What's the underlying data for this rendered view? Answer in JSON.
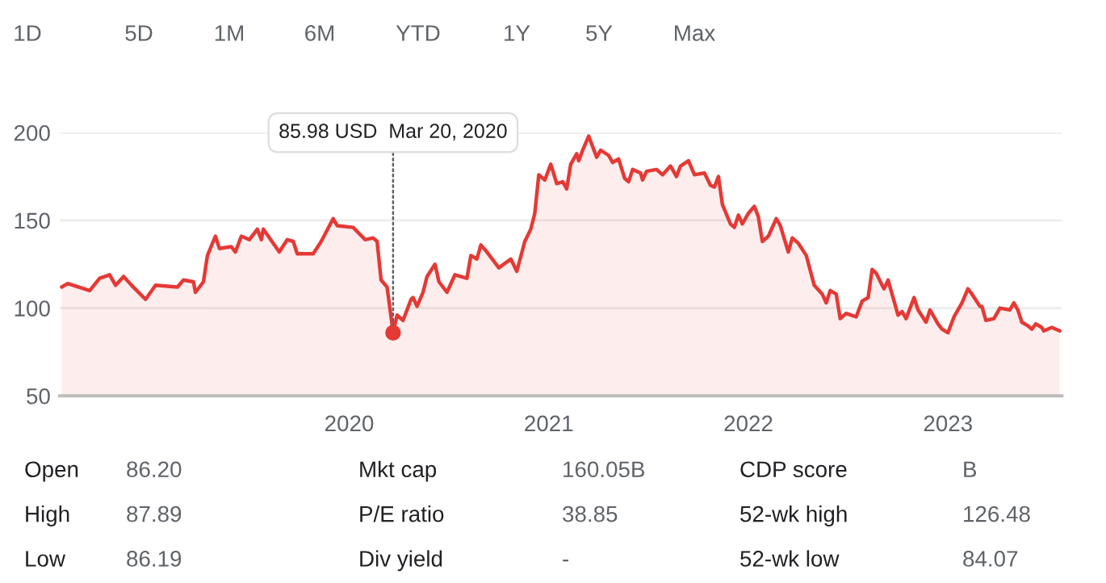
{
  "chart_data": [
    {
      "type": "other",
      "annotations": [
        "1D",
        "5D",
        "1M",
        "6M",
        "YTD",
        "1Y",
        "5Y",
        "Max"
      ]
    },
    {
      "type": "area",
      "color": "#e53935",
      "x": [
        2018.56,
        2018.59,
        2018.7,
        2018.75,
        2018.8,
        2018.83,
        2018.87,
        2018.91,
        2018.98,
        2019.03,
        2019.14,
        2019.17,
        2019.22,
        2019.23,
        2019.27,
        2019.29,
        2019.33,
        2019.35,
        2019.41,
        2019.43,
        2019.46,
        2019.5,
        2019.54,
        2019.56,
        2019.57,
        2019.65,
        2019.69,
        2019.72,
        2019.74,
        2019.82,
        2019.86,
        2019.92,
        2019.94,
        2020.02,
        2020.08,
        2020.12,
        2020.14,
        2020.16,
        2020.19,
        2020.21,
        2020.22,
        2020.24,
        2020.27,
        2020.31,
        2020.32,
        2020.34,
        2020.37,
        2020.39,
        2020.43,
        2020.45,
        2020.49,
        2020.53,
        2020.59,
        2020.61,
        2020.64,
        2020.66,
        2020.69,
        2020.75,
        2020.81,
        2020.84,
        2020.88,
        2020.91,
        2020.93,
        2020.95,
        2020.98,
        2021.01,
        2021.04,
        2021.07,
        2021.09,
        2021.11,
        2021.14,
        2021.15,
        2021.17,
        2021.2,
        2021.24,
        2021.26,
        2021.3,
        2021.32,
        2021.35,
        2021.38,
        2021.4,
        2021.42,
        2021.46,
        2021.47,
        2021.49,
        2021.54,
        2021.57,
        2021.61,
        2021.64,
        2021.66,
        2021.7,
        2021.73,
        2021.78,
        2021.81,
        2021.83,
        2021.85,
        2021.87,
        2021.91,
        2021.93,
        2021.95,
        2021.97,
        2022.0,
        2022.03,
        2022.05,
        2022.07,
        2022.1,
        2022.14,
        2022.16,
        2022.2,
        2022.22,
        2022.25,
        2022.29,
        2022.33,
        2022.37,
        2022.39,
        2022.41,
        2022.44,
        2022.46,
        2022.49,
        2022.54,
        2022.57,
        2022.6,
        2022.62,
        2022.64,
        2022.67,
        2022.68,
        2022.7,
        2022.75,
        2022.77,
        2022.79,
        2022.83,
        2022.85,
        2022.89,
        2022.91,
        2022.95,
        2022.97,
        2023.0,
        2023.03,
        2023.07,
        2023.1,
        2023.12,
        2023.16,
        2023.17,
        2023.19,
        2023.23,
        2023.26,
        2023.31,
        2023.33,
        2023.35,
        2023.37,
        2023.4,
        2023.42,
        2023.44,
        2023.47,
        2023.48,
        2023.52,
        2023.56
      ],
      "values": [
        112,
        114,
        110,
        117,
        119,
        113,
        118,
        113,
        105,
        113,
        112,
        116,
        115,
        109,
        115,
        130,
        141,
        134,
        135,
        132,
        141,
        139,
        145,
        139,
        145,
        132,
        139,
        138,
        131,
        131,
        138,
        151,
        147,
        146,
        139,
        140,
        138,
        116,
        112,
        95,
        85.98,
        96,
        93,
        105,
        106,
        101,
        109,
        118,
        125,
        115,
        109,
        119,
        117,
        130,
        128,
        136,
        132,
        123,
        128,
        121,
        138,
        145,
        154,
        176,
        173,
        182,
        171,
        172,
        168,
        182,
        188,
        184,
        190,
        198,
        186,
        190,
        187,
        183,
        185,
        174,
        172,
        179,
        177,
        173,
        178,
        179,
        176,
        181,
        175,
        181,
        184,
        176,
        177,
        170,
        169,
        175,
        159,
        148,
        146,
        153,
        148,
        154,
        158,
        152,
        138,
        141,
        151,
        147,
        132,
        140,
        137,
        130,
        113,
        108,
        103,
        110,
        108,
        94,
        97,
        95,
        104,
        106,
        122,
        120,
        113,
        111,
        116,
        96,
        98,
        94,
        106,
        99,
        92,
        99,
        91,
        88,
        86,
        95,
        103,
        111,
        108,
        101,
        101,
        93,
        94,
        100,
        99,
        103,
        99,
        92,
        90,
        88,
        91,
        89,
        87,
        89,
        87
      ],
      "xlim": [
        2018.55,
        2023.57
      ],
      "ylim": [
        50,
        200
      ],
      "xticks": [
        2020,
        2021,
        2022,
        2023
      ],
      "yticks": [
        50,
        100,
        150,
        200
      ],
      "grid": "y",
      "annotations": [
        {
          "text": "85.98 USD  Mar 20, 2020",
          "x": 2020.22,
          "y": 85.98
        }
      ]
    },
    {
      "type": "other",
      "annotations": [
        "Open",
        "86.20",
        "Mkt cap",
        "160.05B",
        "CDP score",
        "B",
        "High",
        "87.89",
        "P/E ratio",
        "38.85",
        "52-wk high",
        "126.48",
        "Low",
        "86.19",
        "Div yield",
        "-",
        "52-wk low",
        "84.07"
      ]
    }
  ]
}
